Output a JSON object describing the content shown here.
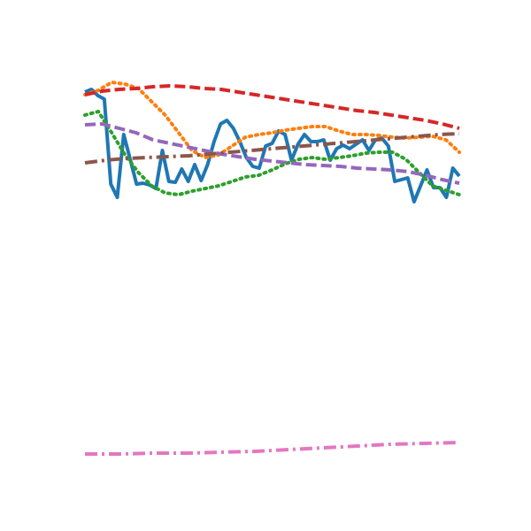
{
  "chart_data": {
    "type": "line",
    "ylim": [
      0,
      600
    ],
    "series": [
      {
        "color": "#1f77b4",
        "linestyle": "solid",
        "values": [
          496,
          499,
          492,
          488,
          392,
          377,
          448,
          420,
          392,
          393,
          391,
          387,
          430,
          395,
          394,
          409,
          395,
          414,
          396,
          414,
          440,
          460,
          464,
          455,
          440,
          422,
          412,
          410,
          435,
          438,
          452,
          448,
          419,
          437,
          448,
          440,
          440,
          442,
          419,
          432,
          436,
          432,
          437,
          442,
          430,
          442,
          444,
          435,
          395,
          397,
          399,
          372,
          390,
          408,
          388,
          388,
          377,
          410,
          401
        ]
      },
      {
        "color": "#ff7f0e",
        "linestyle": "dotted",
        "values": [
          493,
          498,
          507,
          505,
          500,
          485,
          470,
          450,
          430,
          422,
          425,
          435,
          445,
          448,
          450,
          453,
          455,
          457,
          457,
          452,
          448,
          448,
          447,
          445,
          444,
          445,
          446,
          442,
          428
        ]
      },
      {
        "color": "#2ca02c",
        "linestyle": "dotted",
        "values": [
          470,
          474,
          450,
          425,
          405,
          390,
          382,
          380,
          384,
          387,
          390,
          395,
          400,
          402,
          408,
          415,
          420,
          422,
          420,
          422,
          424,
          427,
          428,
          428,
          420,
          405,
          390,
          385,
          380
        ]
      },
      {
        "color": "#d62728",
        "linestyle": "dashed",
        "values": [
          493,
          497,
          499,
          500,
          502,
          503,
          502,
          500,
          499,
          496,
          493,
          490,
          487,
          484,
          481,
          478,
          475,
          473,
          470,
          467,
          464,
          460,
          455
        ]
      },
      {
        "color": "#9467bd",
        "linestyle": "dashed",
        "values": [
          459,
          460,
          455,
          450,
          442,
          438,
          434,
          430,
          426,
          423,
          420,
          418,
          416,
          414,
          413,
          412,
          410,
          409,
          408,
          406,
          402,
          397,
          393
        ]
      },
      {
        "color": "#8c564b",
        "linestyle": "dashdot",
        "values": [
          416,
          419,
          421,
          422,
          423,
          424,
          426,
          428,
          430,
          432,
          434,
          436,
          438,
          440,
          442,
          444,
          446,
          448,
          449
        ]
      },
      {
        "color": "#e377c2",
        "linestyle": "dashdot",
        "values": [
          87,
          87,
          88,
          88,
          89,
          90,
          92,
          94,
          96,
          98,
          99,
          100
        ]
      }
    ]
  }
}
